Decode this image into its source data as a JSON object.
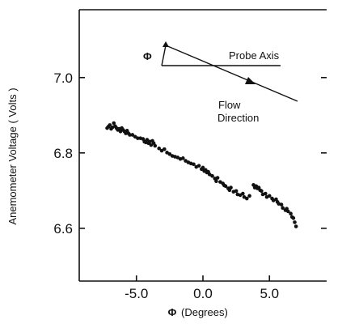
{
  "chart_data": {
    "type": "scatter",
    "xlabel": "(Degrees)",
    "xlabel_symbol": "Φ",
    "ylabel": "Anemometer   Voltage   ( Volts )",
    "xlim": [
      -9.3,
      9.3
    ],
    "ylim": [
      6.46,
      7.18
    ],
    "x_ticks": [
      -5.0,
      0.0,
      5.0
    ],
    "x_tick_labels": [
      "-5.0",
      "0.0",
      "5.0"
    ],
    "y_ticks": [
      6.6,
      6.8,
      7.0
    ],
    "y_tick_labels": [
      "6.6",
      "6.8",
      "7.0"
    ],
    "grid": false,
    "marker_color": "#111111",
    "series": [
      {
        "points": [
          [
            -7.2,
            6.866
          ],
          [
            -7.1,
            6.87
          ],
          [
            -7.0,
            6.874
          ],
          [
            -6.9,
            6.864
          ],
          [
            -6.8,
            6.868
          ],
          [
            -6.7,
            6.879
          ],
          [
            -6.6,
            6.871
          ],
          [
            -6.5,
            6.866
          ],
          [
            -6.4,
            6.861
          ],
          [
            -6.3,
            6.864
          ],
          [
            -6.2,
            6.857
          ],
          [
            -6.1,
            6.866
          ],
          [
            -6.0,
            6.861
          ],
          [
            -5.9,
            6.857
          ],
          [
            -5.8,
            6.852
          ],
          [
            -5.7,
            6.859
          ],
          [
            -5.6,
            6.852
          ],
          [
            -5.5,
            6.848
          ],
          [
            -5.3,
            6.848
          ],
          [
            -5.1,
            6.843
          ],
          [
            -4.9,
            6.839
          ],
          [
            -4.7,
            6.839
          ],
          [
            -4.5,
            6.837
          ],
          [
            -4.4,
            6.83
          ],
          [
            -4.3,
            6.828
          ],
          [
            -4.2,
            6.835
          ],
          [
            -4.1,
            6.826
          ],
          [
            -4.0,
            6.83
          ],
          [
            -3.9,
            6.821
          ],
          [
            -3.8,
            6.832
          ],
          [
            -3.7,
            6.826
          ],
          [
            -3.6,
            6.819
          ],
          [
            -3.3,
            6.812
          ],
          [
            -3.1,
            6.806
          ],
          [
            -2.9,
            6.81
          ],
          [
            -2.7,
            6.801
          ],
          [
            -2.5,
            6.797
          ],
          [
            -2.3,
            6.792
          ],
          [
            -2.1,
            6.79
          ],
          [
            -1.9,
            6.788
          ],
          [
            -1.7,
            6.784
          ],
          [
            -1.5,
            6.786
          ],
          [
            -1.3,
            6.779
          ],
          [
            -1.1,
            6.775
          ],
          [
            -0.9,
            6.772
          ],
          [
            -0.7,
            6.77
          ],
          [
            -0.5,
            6.763
          ],
          [
            -0.3,
            6.766
          ],
          [
            -0.1,
            6.757
          ],
          [
            0.0,
            6.761
          ],
          [
            0.1,
            6.752
          ],
          [
            0.2,
            6.755
          ],
          [
            0.3,
            6.748
          ],
          [
            0.4,
            6.75
          ],
          [
            0.5,
            6.743
          ],
          [
            0.7,
            6.739
          ],
          [
            0.9,
            6.732
          ],
          [
            1.0,
            6.725
          ],
          [
            1.1,
            6.734
          ],
          [
            1.3,
            6.723
          ],
          [
            1.5,
            6.719
          ],
          [
            1.6,
            6.714
          ],
          [
            1.7,
            6.712
          ],
          [
            1.9,
            6.706
          ],
          [
            2.0,
            6.701
          ],
          [
            2.1,
            6.708
          ],
          [
            2.3,
            6.697
          ],
          [
            2.5,
            6.699
          ],
          [
            2.6,
            6.69
          ],
          [
            2.8,
            6.688
          ],
          [
            3.0,
            6.692
          ],
          [
            3.1,
            6.683
          ],
          [
            3.3,
            6.679
          ],
          [
            3.5,
            6.686
          ],
          [
            3.8,
            6.715
          ],
          [
            3.9,
            6.708
          ],
          [
            4.0,
            6.712
          ],
          [
            4.1,
            6.706
          ],
          [
            4.2,
            6.708
          ],
          [
            4.3,
            6.701
          ],
          [
            4.4,
            6.699
          ],
          [
            4.5,
            6.69
          ],
          [
            4.7,
            6.692
          ],
          [
            4.8,
            6.683
          ],
          [
            5.0,
            6.686
          ],
          [
            5.2,
            6.679
          ],
          [
            5.3,
            6.674
          ],
          [
            5.5,
            6.677
          ],
          [
            5.6,
            6.67
          ],
          [
            5.7,
            6.665
          ],
          [
            5.9,
            6.663
          ],
          [
            6.0,
            6.654
          ],
          [
            6.2,
            6.648
          ],
          [
            6.3,
            6.652
          ],
          [
            6.4,
            6.645
          ],
          [
            6.6,
            6.639
          ],
          [
            6.7,
            6.63
          ],
          [
            6.8,
            6.627
          ],
          [
            6.9,
            6.616
          ],
          [
            7.0,
            6.605
          ]
        ]
      }
    ],
    "annotations": {
      "phi_symbol": "Φ",
      "probe_axis": "Probe  Axis",
      "flow_line1": "Flow",
      "flow_line2": "Direction"
    }
  }
}
